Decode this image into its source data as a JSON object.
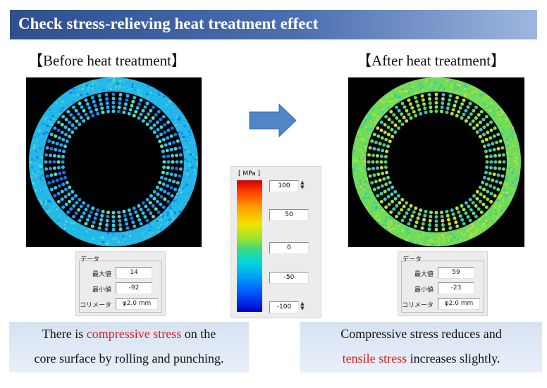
{
  "title": "Check stress-relieving heat treatment effect",
  "before": {
    "label": "【Before heat treatment】",
    "data_header": "データ",
    "rows": [
      {
        "label": "最大値",
        "value": "14"
      },
      {
        "label": "最小値",
        "value": "-92"
      },
      {
        "label": "コリメータ",
        "value": "φ2.0 mm"
      }
    ],
    "caption_pre": "There is ",
    "caption_red": "compressive stress",
    "caption_post": " on the",
    "caption_line2": "core surface by rolling and punching."
  },
  "after": {
    "label": "【After heat treatment】",
    "data_header": "データ",
    "rows": [
      {
        "label": "最大値",
        "value": "59"
      },
      {
        "label": "最小値",
        "value": "-23"
      },
      {
        "label": "コリメータ",
        "value": "φ2.0 mm"
      }
    ],
    "caption_line1": "Compressive stress reduces and",
    "caption_red": "tensile stress",
    "caption_post": " increases slightly."
  },
  "scale": {
    "unit": "[ MPa ]",
    "ticks": [
      "100",
      "50",
      "0",
      "-50",
      "-100"
    ]
  },
  "colors": {
    "title_bar": "#3a5a9c",
    "arrow": "#4f86c6",
    "highlight": "#e01b1b",
    "caption_bg": "#dde7f4"
  }
}
